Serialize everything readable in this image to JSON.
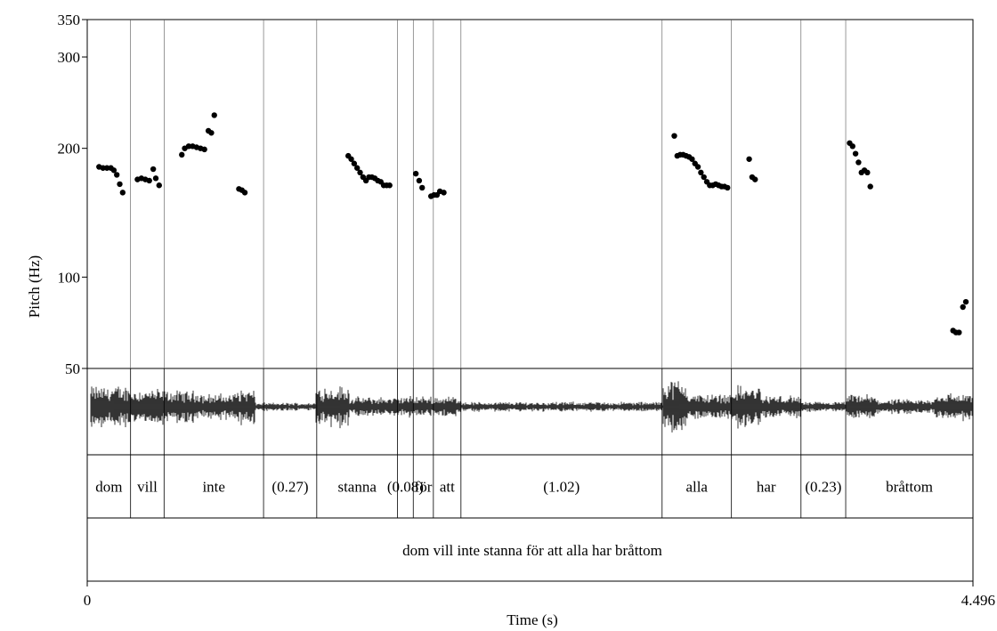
{
  "chart_data": {
    "type": "scatter",
    "title": "",
    "xlabel": "Time (s)",
    "ylabel": "Pitch (Hz)",
    "xlim": [
      0,
      4.496
    ],
    "ylim": [
      50,
      350
    ],
    "x_tick_labels": [
      "0",
      "4.496"
    ],
    "y_tick_labels": [
      "350",
      "300",
      "200",
      "100",
      "50"
    ],
    "y_ticks": [
      350,
      300,
      200,
      100,
      50
    ],
    "boundaries": [
      0.22,
      0.39,
      0.895,
      1.165,
      1.575,
      1.655,
      1.757,
      1.897,
      2.918,
      3.27,
      3.623,
      3.85
    ],
    "words": [
      {
        "label": "dom",
        "start": 0.0,
        "end": 0.22
      },
      {
        "label": "vill",
        "start": 0.22,
        "end": 0.39
      },
      {
        "label": "inte",
        "start": 0.39,
        "end": 0.895
      },
      {
        "label": "(0.27)",
        "start": 0.895,
        "end": 1.165
      },
      {
        "label": "stanna",
        "start": 1.165,
        "end": 1.575
      },
      {
        "label": "(0.08)",
        "start": 1.575,
        "end": 1.655
      },
      {
        "label": "för",
        "start": 1.655,
        "end": 1.757
      },
      {
        "label": "att",
        "start": 1.757,
        "end": 1.897
      },
      {
        "label": "(1.02)",
        "start": 1.897,
        "end": 2.918
      },
      {
        "label": "alla",
        "start": 2.918,
        "end": 3.27
      },
      {
        "label": "har",
        "start": 3.27,
        "end": 3.623
      },
      {
        "label": "(0.23)",
        "start": 3.623,
        "end": 3.85
      },
      {
        "label": "bråttom",
        "start": 3.85,
        "end": 4.496
      }
    ],
    "sentence": "dom vill inte stanna för att alla har bråttom",
    "series": [
      {
        "values": [
          [
            0.06,
            183
          ],
          [
            0.08,
            182
          ],
          [
            0.1,
            182
          ],
          [
            0.12,
            182
          ],
          [
            0.135,
            180
          ],
          [
            0.15,
            176
          ],
          [
            0.165,
            168
          ],
          [
            0.18,
            161
          ],
          [
            0.255,
            172
          ],
          [
            0.275,
            173
          ],
          [
            0.295,
            172
          ],
          [
            0.315,
            171
          ],
          [
            0.335,
            181
          ],
          [
            0.348,
            173
          ],
          [
            0.365,
            167
          ],
          [
            0.48,
            194
          ],
          [
            0.495,
            200
          ],
          [
            0.515,
            202
          ],
          [
            0.535,
            202
          ],
          [
            0.555,
            201
          ],
          [
            0.575,
            200
          ],
          [
            0.595,
            199
          ],
          [
            0.615,
            217
          ],
          [
            0.63,
            215
          ],
          [
            0.645,
            233
          ],
          [
            0.77,
            164
          ],
          [
            0.785,
            163
          ],
          [
            0.8,
            161
          ],
          [
            1.325,
            193
          ],
          [
            1.34,
            190
          ],
          [
            1.355,
            186
          ],
          [
            1.37,
            182
          ],
          [
            1.385,
            178
          ],
          [
            1.4,
            174
          ],
          [
            1.415,
            171
          ],
          [
            1.43,
            174
          ],
          [
            1.445,
            174
          ],
          [
            1.46,
            173
          ],
          [
            1.475,
            171
          ],
          [
            1.49,
            170
          ],
          [
            1.505,
            167
          ],
          [
            1.52,
            167
          ],
          [
            1.535,
            167
          ],
          [
            1.668,
            177
          ],
          [
            1.685,
            171
          ],
          [
            1.7,
            165
          ],
          [
            1.745,
            158
          ],
          [
            1.76,
            159
          ],
          [
            1.775,
            159
          ],
          [
            1.79,
            162
          ],
          [
            1.81,
            161
          ],
          [
            2.98,
            212
          ],
          [
            2.995,
            193
          ],
          [
            3.01,
            194
          ],
          [
            3.025,
            194
          ],
          [
            3.04,
            193
          ],
          [
            3.055,
            192
          ],
          [
            3.07,
            190
          ],
          [
            3.085,
            186
          ],
          [
            3.1,
            183
          ],
          [
            3.115,
            178
          ],
          [
            3.13,
            174
          ],
          [
            3.145,
            170
          ],
          [
            3.16,
            167
          ],
          [
            3.175,
            167
          ],
          [
            3.19,
            168
          ],
          [
            3.205,
            167
          ],
          [
            3.22,
            166
          ],
          [
            3.235,
            166
          ],
          [
            3.25,
            165
          ],
          [
            3.36,
            190
          ],
          [
            3.375,
            174
          ],
          [
            3.39,
            172
          ],
          [
            3.87,
            205
          ],
          [
            3.885,
            202
          ],
          [
            3.9,
            195
          ],
          [
            3.915,
            187
          ],
          [
            3.93,
            178
          ],
          [
            3.945,
            180
          ],
          [
            3.96,
            178
          ],
          [
            3.975,
            166
          ],
          [
            4.395,
            69
          ],
          [
            4.41,
            68
          ],
          [
            4.425,
            68
          ],
          [
            4.445,
            82
          ],
          [
            4.46,
            85
          ]
        ]
      }
    ]
  }
}
